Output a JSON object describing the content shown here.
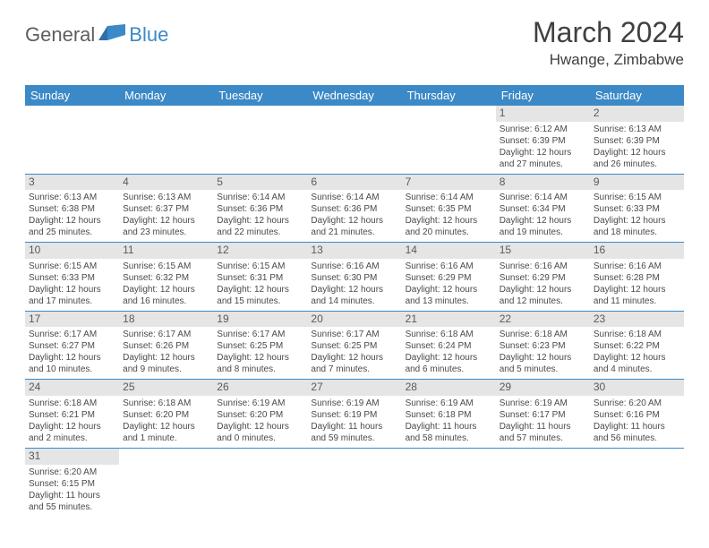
{
  "logo": {
    "general": "General",
    "blue": "Blue",
    "general_color": "#5e5e5e",
    "blue_color": "#3b89c7"
  },
  "title": "March 2024",
  "location": "Hwange, Zimbabwe",
  "colors": {
    "header_bg": "#3b89c7",
    "header_text": "#ffffff",
    "daynum_bg": "#e5e5e5",
    "row_border": "#3b89c7",
    "body_text": "#4a4a4a"
  },
  "day_headers": [
    "Sunday",
    "Monday",
    "Tuesday",
    "Wednesday",
    "Thursday",
    "Friday",
    "Saturday"
  ],
  "weeks": [
    [
      null,
      null,
      null,
      null,
      null,
      {
        "n": "1",
        "sr": "Sunrise: 6:12 AM",
        "ss": "Sunset: 6:39 PM",
        "d1": "Daylight: 12 hours",
        "d2": "and 27 minutes."
      },
      {
        "n": "2",
        "sr": "Sunrise: 6:13 AM",
        "ss": "Sunset: 6:39 PM",
        "d1": "Daylight: 12 hours",
        "d2": "and 26 minutes."
      }
    ],
    [
      {
        "n": "3",
        "sr": "Sunrise: 6:13 AM",
        "ss": "Sunset: 6:38 PM",
        "d1": "Daylight: 12 hours",
        "d2": "and 25 minutes."
      },
      {
        "n": "4",
        "sr": "Sunrise: 6:13 AM",
        "ss": "Sunset: 6:37 PM",
        "d1": "Daylight: 12 hours",
        "d2": "and 23 minutes."
      },
      {
        "n": "5",
        "sr": "Sunrise: 6:14 AM",
        "ss": "Sunset: 6:36 PM",
        "d1": "Daylight: 12 hours",
        "d2": "and 22 minutes."
      },
      {
        "n": "6",
        "sr": "Sunrise: 6:14 AM",
        "ss": "Sunset: 6:36 PM",
        "d1": "Daylight: 12 hours",
        "d2": "and 21 minutes."
      },
      {
        "n": "7",
        "sr": "Sunrise: 6:14 AM",
        "ss": "Sunset: 6:35 PM",
        "d1": "Daylight: 12 hours",
        "d2": "and 20 minutes."
      },
      {
        "n": "8",
        "sr": "Sunrise: 6:14 AM",
        "ss": "Sunset: 6:34 PM",
        "d1": "Daylight: 12 hours",
        "d2": "and 19 minutes."
      },
      {
        "n": "9",
        "sr": "Sunrise: 6:15 AM",
        "ss": "Sunset: 6:33 PM",
        "d1": "Daylight: 12 hours",
        "d2": "and 18 minutes."
      }
    ],
    [
      {
        "n": "10",
        "sr": "Sunrise: 6:15 AM",
        "ss": "Sunset: 6:33 PM",
        "d1": "Daylight: 12 hours",
        "d2": "and 17 minutes."
      },
      {
        "n": "11",
        "sr": "Sunrise: 6:15 AM",
        "ss": "Sunset: 6:32 PM",
        "d1": "Daylight: 12 hours",
        "d2": "and 16 minutes."
      },
      {
        "n": "12",
        "sr": "Sunrise: 6:15 AM",
        "ss": "Sunset: 6:31 PM",
        "d1": "Daylight: 12 hours",
        "d2": "and 15 minutes."
      },
      {
        "n": "13",
        "sr": "Sunrise: 6:16 AM",
        "ss": "Sunset: 6:30 PM",
        "d1": "Daylight: 12 hours",
        "d2": "and 14 minutes."
      },
      {
        "n": "14",
        "sr": "Sunrise: 6:16 AM",
        "ss": "Sunset: 6:29 PM",
        "d1": "Daylight: 12 hours",
        "d2": "and 13 minutes."
      },
      {
        "n": "15",
        "sr": "Sunrise: 6:16 AM",
        "ss": "Sunset: 6:29 PM",
        "d1": "Daylight: 12 hours",
        "d2": "and 12 minutes."
      },
      {
        "n": "16",
        "sr": "Sunrise: 6:16 AM",
        "ss": "Sunset: 6:28 PM",
        "d1": "Daylight: 12 hours",
        "d2": "and 11 minutes."
      }
    ],
    [
      {
        "n": "17",
        "sr": "Sunrise: 6:17 AM",
        "ss": "Sunset: 6:27 PM",
        "d1": "Daylight: 12 hours",
        "d2": "and 10 minutes."
      },
      {
        "n": "18",
        "sr": "Sunrise: 6:17 AM",
        "ss": "Sunset: 6:26 PM",
        "d1": "Daylight: 12 hours",
        "d2": "and 9 minutes."
      },
      {
        "n": "19",
        "sr": "Sunrise: 6:17 AM",
        "ss": "Sunset: 6:25 PM",
        "d1": "Daylight: 12 hours",
        "d2": "and 8 minutes."
      },
      {
        "n": "20",
        "sr": "Sunrise: 6:17 AM",
        "ss": "Sunset: 6:25 PM",
        "d1": "Daylight: 12 hours",
        "d2": "and 7 minutes."
      },
      {
        "n": "21",
        "sr": "Sunrise: 6:18 AM",
        "ss": "Sunset: 6:24 PM",
        "d1": "Daylight: 12 hours",
        "d2": "and 6 minutes."
      },
      {
        "n": "22",
        "sr": "Sunrise: 6:18 AM",
        "ss": "Sunset: 6:23 PM",
        "d1": "Daylight: 12 hours",
        "d2": "and 5 minutes."
      },
      {
        "n": "23",
        "sr": "Sunrise: 6:18 AM",
        "ss": "Sunset: 6:22 PM",
        "d1": "Daylight: 12 hours",
        "d2": "and 4 minutes."
      }
    ],
    [
      {
        "n": "24",
        "sr": "Sunrise: 6:18 AM",
        "ss": "Sunset: 6:21 PM",
        "d1": "Daylight: 12 hours",
        "d2": "and 2 minutes."
      },
      {
        "n": "25",
        "sr": "Sunrise: 6:18 AM",
        "ss": "Sunset: 6:20 PM",
        "d1": "Daylight: 12 hours",
        "d2": "and 1 minute."
      },
      {
        "n": "26",
        "sr": "Sunrise: 6:19 AM",
        "ss": "Sunset: 6:20 PM",
        "d1": "Daylight: 12 hours",
        "d2": "and 0 minutes."
      },
      {
        "n": "27",
        "sr": "Sunrise: 6:19 AM",
        "ss": "Sunset: 6:19 PM",
        "d1": "Daylight: 11 hours",
        "d2": "and 59 minutes."
      },
      {
        "n": "28",
        "sr": "Sunrise: 6:19 AM",
        "ss": "Sunset: 6:18 PM",
        "d1": "Daylight: 11 hours",
        "d2": "and 58 minutes."
      },
      {
        "n": "29",
        "sr": "Sunrise: 6:19 AM",
        "ss": "Sunset: 6:17 PM",
        "d1": "Daylight: 11 hours",
        "d2": "and 57 minutes."
      },
      {
        "n": "30",
        "sr": "Sunrise: 6:20 AM",
        "ss": "Sunset: 6:16 PM",
        "d1": "Daylight: 11 hours",
        "d2": "and 56 minutes."
      }
    ],
    [
      {
        "n": "31",
        "sr": "Sunrise: 6:20 AM",
        "ss": "Sunset: 6:15 PM",
        "d1": "Daylight: 11 hours",
        "d2": "and 55 minutes."
      },
      null,
      null,
      null,
      null,
      null,
      null
    ]
  ]
}
